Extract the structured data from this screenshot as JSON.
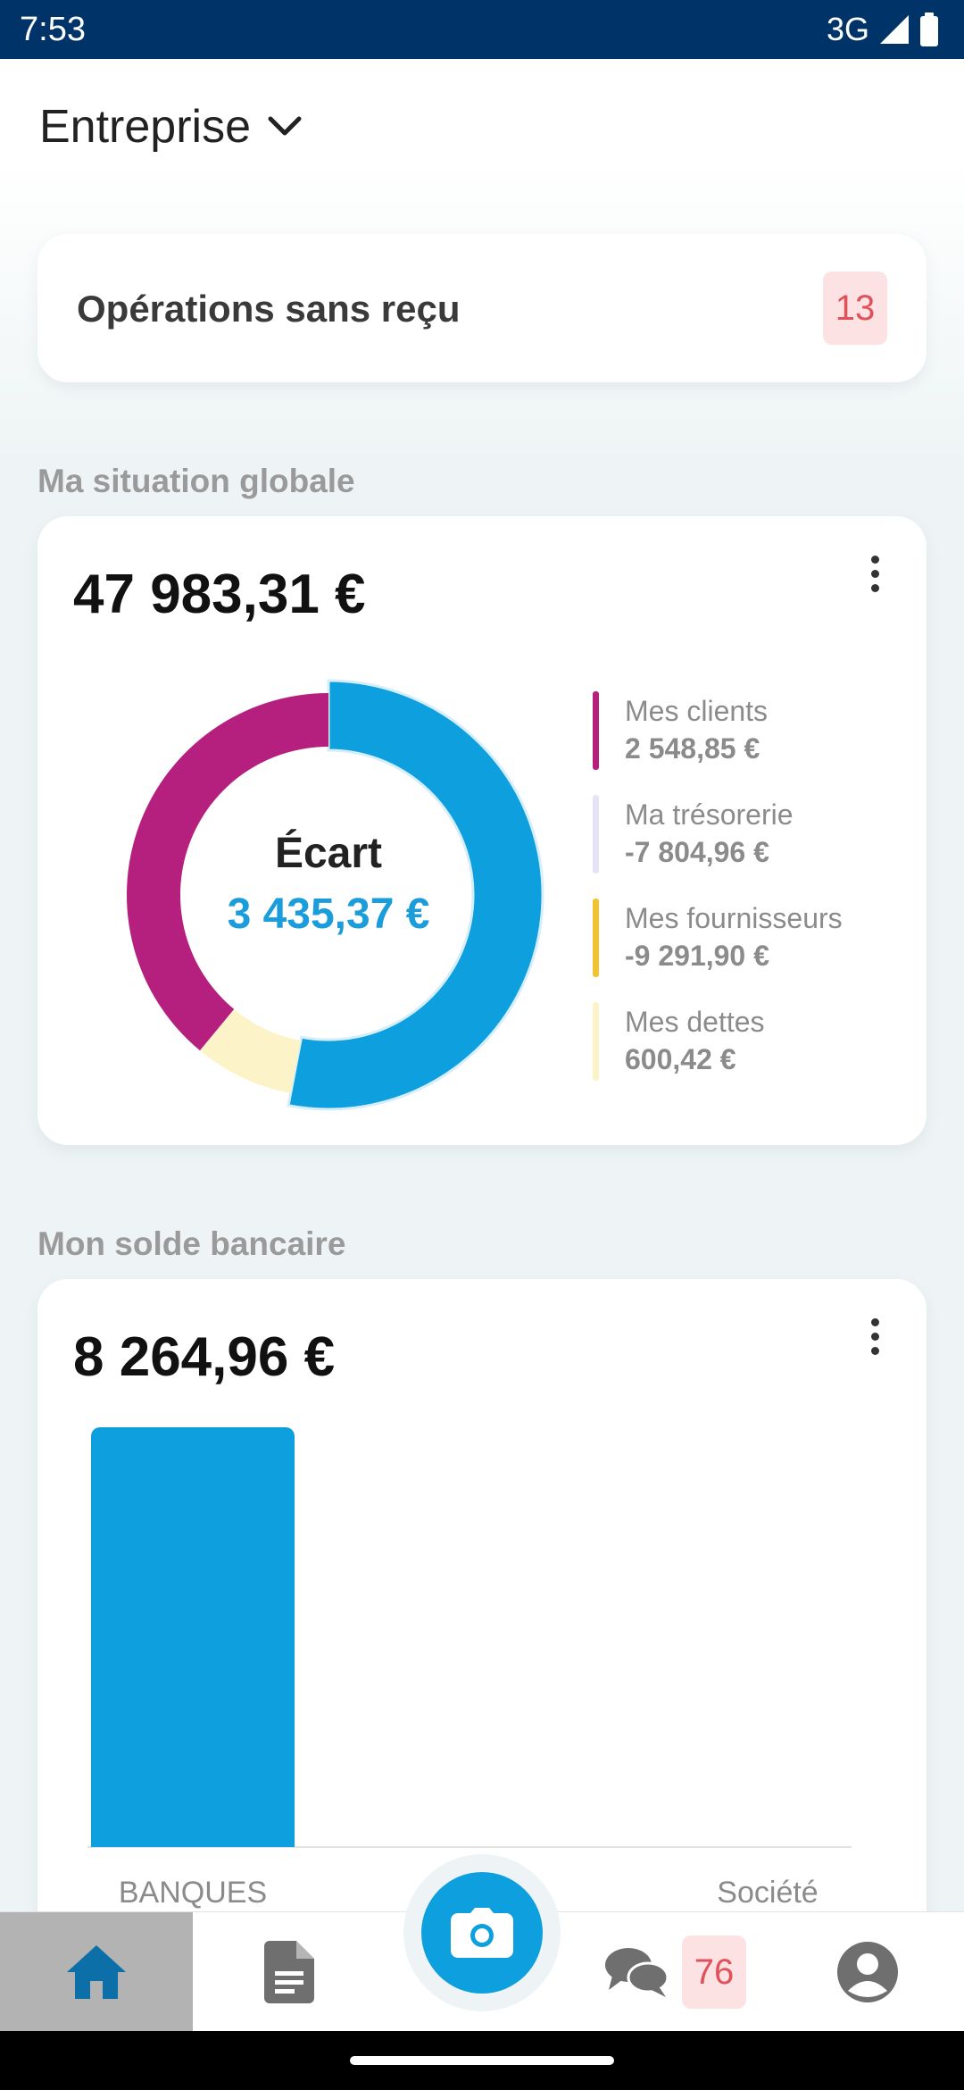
{
  "status_bar": {
    "time": "7:53",
    "network": "3G"
  },
  "header": {
    "company": "Entreprise"
  },
  "operations": {
    "label": "Opérations sans reçu",
    "count": "13"
  },
  "global": {
    "section_title": "Ma situation globale",
    "total": "47 983,31 €",
    "center_label": "Écart",
    "center_value": "3 435,37 €",
    "legend": [
      {
        "name": "Mes clients",
        "value": "2 548,85 €",
        "color": "#b5207f"
      },
      {
        "name": "Ma trésorerie",
        "value": "-7 804,96 €",
        "color": "#e6e3f6"
      },
      {
        "name": "Mes fournisseurs",
        "value": "-9 291,90 €",
        "color": "#f1c232"
      },
      {
        "name": "Mes dettes",
        "value": "600,42 €",
        "color": "#fdf3c8"
      }
    ]
  },
  "bank": {
    "section_title": "Mon solde bancaire",
    "total": "8 264,96 €"
  },
  "chart_data": [
    {
      "type": "pie",
      "title": "",
      "categories": [
        "Mes clients",
        "Ma trésorerie",
        "Mes fournisseurs",
        "Mes dettes"
      ],
      "values": [
        2548.85,
        -7804.96,
        -9291.9,
        600.42
      ],
      "visible_segment_shares": {
        "blue": 0.53,
        "cream": 0.08,
        "magenta": 0.39
      },
      "colors": {
        "blue": "#0e9fdf",
        "cream": "#fdf3c8",
        "magenta": "#b5207f"
      }
    },
    {
      "type": "bar",
      "title": "",
      "categories": [
        "BANQUES",
        "Société"
      ],
      "values": [
        8264.96,
        0
      ],
      "color": "#0e9fdf"
    }
  ],
  "nav": {
    "messages_count": "76"
  },
  "colors": {
    "accent": "#0e9fdf",
    "status_bar": "#003468",
    "badge_bg": "#fde2e4",
    "badge_text": "#e0515a"
  },
  "icons": {
    "status": [
      "signal-icon",
      "battery-icon"
    ],
    "nav": [
      "home-icon",
      "document-icon",
      "camera-icon",
      "chat-icon",
      "profile-icon"
    ]
  }
}
